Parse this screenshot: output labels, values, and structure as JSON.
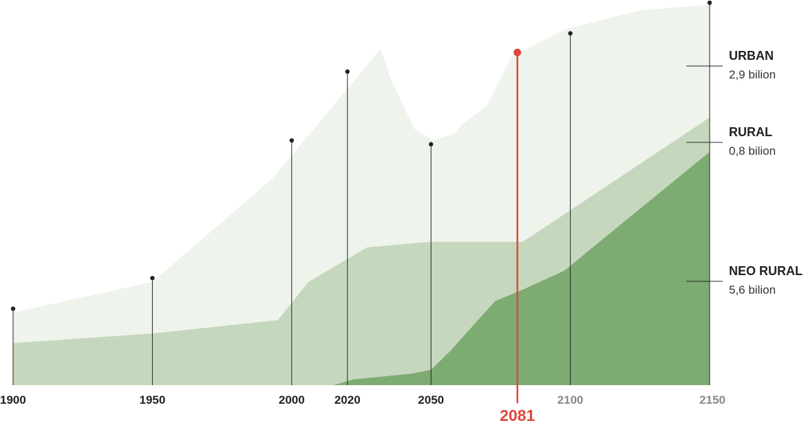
{
  "chart_data": {
    "type": "area",
    "title": "",
    "xlabel": "",
    "ylabel": "",
    "grid": false,
    "legend": "right",
    "x_ticks": [
      {
        "year": 1900,
        "label": "1900",
        "color": "#222222"
      },
      {
        "year": 1950,
        "label": "1950",
        "color": "#222222"
      },
      {
        "year": 2000,
        "label": "2000",
        "color": "#222222"
      },
      {
        "year": 2020,
        "label": "2020",
        "color": "#222222"
      },
      {
        "year": 2050,
        "label": "2050",
        "color": "#222222"
      },
      {
        "year": 2100,
        "label": "2100",
        "color": "#888888"
      },
      {
        "year": 2150,
        "label": "2150",
        "color": "#888888"
      }
    ],
    "stems": [
      {
        "year": 1900,
        "value": 0.2
      },
      {
        "year": 1950,
        "value": 0.28
      },
      {
        "year": 2000,
        "value": 0.64
      },
      {
        "year": 2020,
        "value": 0.82
      },
      {
        "year": 2050,
        "value": 0.63
      },
      {
        "year": 2100,
        "value": 0.92
      },
      {
        "year": 2150,
        "value": 1.0
      }
    ],
    "highlight": {
      "year": 2081,
      "label": "2081",
      "value": 0.87,
      "color": "#e0483c"
    },
    "series": [
      {
        "name": "URBAN",
        "value_label": "2,9 bilion",
        "color": "#eef3ec",
        "points": [
          [
            1900,
            0.19
          ],
          [
            1950,
            0.27
          ],
          [
            1993,
            0.54
          ],
          [
            2032,
            0.88
          ],
          [
            2035,
            0.81
          ],
          [
            2044,
            0.67
          ],
          [
            2051,
            0.64
          ],
          [
            2059,
            0.66
          ],
          [
            2061,
            0.68
          ],
          [
            2070,
            0.73
          ],
          [
            2079,
            0.86
          ],
          [
            2098,
            0.93
          ],
          [
            2125,
            0.98
          ],
          [
            2150,
            0.995
          ]
        ]
      },
      {
        "name": "RURAL",
        "value_label": "0,8 bilion",
        "color": "#c5d8bd",
        "points": [
          [
            1900,
            0.11
          ],
          [
            1950,
            0.135
          ],
          [
            1995,
            0.17
          ],
          [
            2006,
            0.27
          ],
          [
            2027,
            0.36
          ],
          [
            2050,
            0.375
          ],
          [
            2083,
            0.375
          ],
          [
            2150,
            0.7
          ]
        ]
      },
      {
        "name": "NEO RURAL",
        "value_label": "5,6 bilion",
        "color": "#7dab72",
        "points": [
          [
            2015,
            0.0
          ],
          [
            2022,
            0.015
          ],
          [
            2043,
            0.03
          ],
          [
            2050,
            0.04
          ],
          [
            2057,
            0.09
          ],
          [
            2073,
            0.22
          ],
          [
            2083,
            0.25
          ],
          [
            2098,
            0.3
          ],
          [
            2108,
            0.36
          ],
          [
            2150,
            0.61
          ]
        ]
      }
    ]
  }
}
